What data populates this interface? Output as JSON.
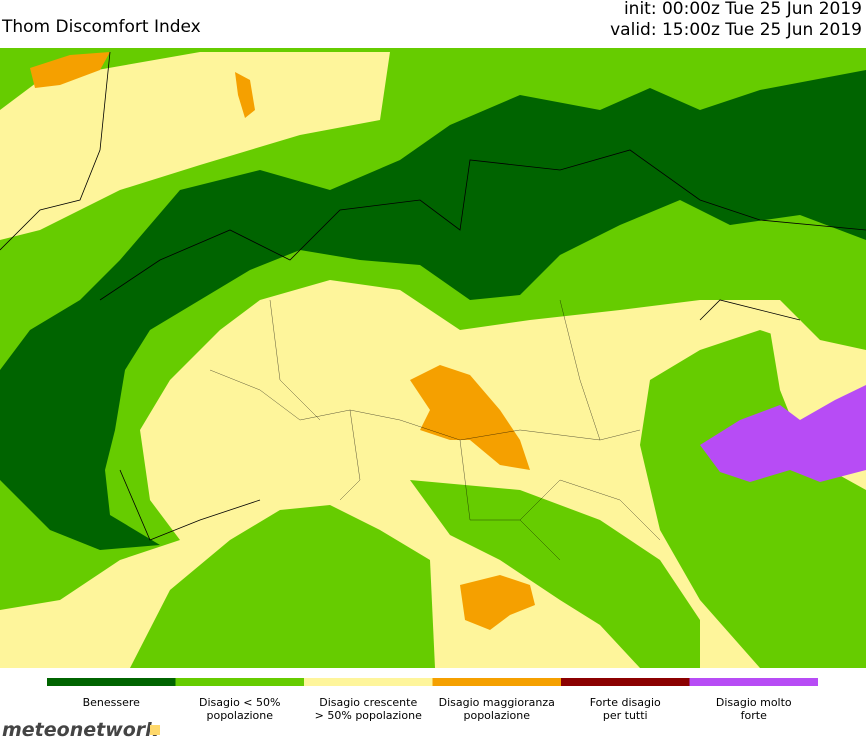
{
  "header": {
    "title": "Thom Discomfort Index",
    "init": "init: 00:00z Tue 25 Jun 2019",
    "valid": "valid: 15:00z Tue 25 Jun 2019"
  },
  "legend": {
    "items": [
      {
        "lines": [
          "Benessere"
        ],
        "color": "#006400"
      },
      {
        "lines": [
          "Disagio < 50%",
          "popolazione"
        ],
        "color": "#66cc00"
      },
      {
        "lines": [
          "Disagio crescente",
          "> 50% popolazione"
        ],
        "color": "#fef59b"
      },
      {
        "lines": [
          "Disagio maggioranza",
          "popolazione"
        ],
        "color": "#f5a000"
      },
      {
        "lines": [
          "Forte disagio",
          "per tutti"
        ],
        "color": "#8b0000"
      },
      {
        "lines": [
          "Disagio molto",
          "forte"
        ],
        "color": "#b74cf5"
      }
    ]
  },
  "logo": {
    "text": "meteonetwork"
  }
}
